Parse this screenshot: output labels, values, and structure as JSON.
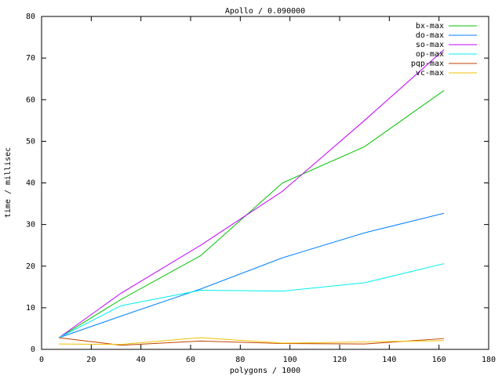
{
  "chart_data": {
    "type": "line",
    "title": "Apollo / 0.090000",
    "x_label": "polygons / 1000",
    "y_label": "time / millisec",
    "x": [
      7,
      32,
      64,
      97,
      130,
      162
    ],
    "series": [
      {
        "name": "bx-max",
        "color": "#00c000",
        "values": [
          2.8,
          12,
          22.5,
          40,
          48.7,
          62.2
        ]
      },
      {
        "name": "do-max",
        "color": "#0080ff",
        "values": [
          2.8,
          8,
          14.5,
          22,
          28,
          32.7
        ]
      },
      {
        "name": "so-max",
        "color": "#c000ff",
        "values": [
          2.8,
          13.5,
          25,
          38,
          55,
          72
        ]
      },
      {
        "name": "op-max",
        "color": "#00eeee",
        "values": [
          2.8,
          10.5,
          14.2,
          14,
          16,
          20.6
        ]
      },
      {
        "name": "pqp-max",
        "color": "#c04000",
        "values": [
          2.8,
          1,
          2,
          1.4,
          1.3,
          2.6
        ]
      },
      {
        "name": "vc-max",
        "color": "#eec000",
        "values": [
          1.3,
          1.2,
          2.8,
          1.5,
          1.8,
          2.1
        ]
      }
    ],
    "xlim": [
      0,
      180
    ],
    "xticks": [
      0,
      20,
      40,
      60,
      80,
      100,
      120,
      140,
      160,
      180
    ],
    "ylim": [
      0,
      80
    ],
    "yticks": [
      0,
      10,
      20,
      30,
      40,
      50,
      60,
      70,
      80
    ],
    "grid": false,
    "legend": "top-right"
  }
}
